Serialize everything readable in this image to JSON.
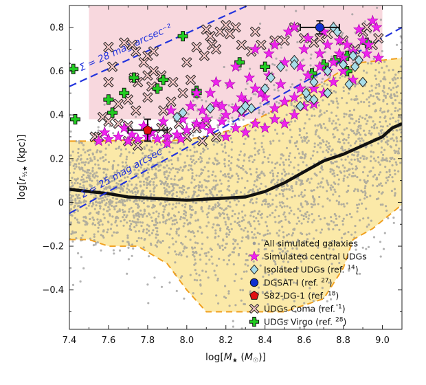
{
  "chart_data": {
    "type": "scatter",
    "xlabel": "log[M★ (M☉)]",
    "ylabel": "log[r½★ (kpc)]",
    "xlim": [
      7.4,
      9.1
    ],
    "ylim": [
      -0.58,
      0.9
    ],
    "xticks": [
      7.4,
      7.6,
      7.8,
      8.0,
      8.2,
      8.4,
      8.6,
      8.8,
      9.0
    ],
    "xtick_labels": [
      "7.4",
      "7.6",
      "7.8",
      "8.0",
      "8.2",
      "8.4",
      "8.6",
      "8.8",
      "9.0"
    ],
    "yticks": [
      -0.4,
      -0.2,
      0.0,
      0.2,
      0.4,
      0.6,
      0.8
    ],
    "ytick_labels": [
      "−0.4",
      "−0.2",
      "0",
      "0.2",
      "0.4",
      "0.6",
      "0.8"
    ],
    "colors": {
      "all_galaxies": "#9a9a9a",
      "scatter_fill": "#fbe9a8",
      "udg_region": "#f8d8de",
      "contour": "#f0a020",
      "median": "#111111",
      "sb_lines": "#2233dd",
      "sim_udg": "#ee22ee",
      "isolated_udg": "#a8dde8",
      "dgsat": "#1030d0",
      "s82": "#e01010",
      "coma_fill": "#f7c8c8",
      "virgo": "#22cc22"
    },
    "udg_region": {
      "x_range": [
        7.5,
        9.0
      ],
      "y_range": [
        0.38,
        0.9
      ]
    },
    "contour_upper": {
      "x": [
        7.4,
        7.55,
        7.7,
        7.9,
        8.1,
        8.3,
        8.5,
        8.7,
        8.82,
        8.9,
        9.1
      ],
      "y": [
        0.28,
        0.28,
        0.285,
        0.28,
        0.3,
        0.35,
        0.45,
        0.55,
        0.62,
        0.64,
        0.66
      ]
    },
    "contour_lower": {
      "x": [
        7.4,
        7.5,
        7.6,
        7.75,
        7.9,
        8.0,
        8.1,
        8.3,
        8.5,
        8.7,
        8.8,
        8.85,
        8.95,
        9.1
      ],
      "y": [
        -0.17,
        -0.17,
        -0.2,
        -0.2,
        -0.28,
        -0.4,
        -0.5,
        -0.5,
        -0.5,
        -0.44,
        -0.3,
        -0.17,
        -0.12,
        -0.01
      ]
    },
    "median_line": {
      "x": [
        7.4,
        7.5,
        7.6,
        7.7,
        7.8,
        7.9,
        8.0,
        8.1,
        8.2,
        8.3,
        8.4,
        8.5,
        8.6,
        8.7,
        8.8,
        8.9,
        9.0,
        9.05,
        9.1
      ],
      "y": [
        0.06,
        0.05,
        0.04,
        0.025,
        0.02,
        0.015,
        0.01,
        0.015,
        0.02,
        0.025,
        0.05,
        0.09,
        0.14,
        0.19,
        0.22,
        0.26,
        0.3,
        0.34,
        0.36
      ]
    },
    "sb_lines": [
      {
        "label": "Σ = 28 mag arcsec⁻²",
        "x": [
          7.4,
          9.1
        ],
        "y": [
          0.53,
          1.22
        ]
      },
      {
        "label": "Σ = 25 mag arcsec⁻²",
        "x": [
          7.4,
          9.1
        ],
        "y": [
          -0.05,
          0.8
        ]
      }
    ],
    "series": [
      {
        "name": "All simulated galaxies",
        "marker": "dot",
        "n_points": 2800
      },
      {
        "name": "Simulated central UDGs",
        "marker": "star",
        "points": [
          [
            8.95,
            0.83
          ],
          [
            8.97,
            0.8
          ],
          [
            8.9,
            0.74
          ],
          [
            8.93,
            0.72
          ],
          [
            8.85,
            0.69
          ],
          [
            8.8,
            0.66
          ],
          [
            8.72,
            0.72
          ],
          [
            8.75,
            0.64
          ],
          [
            8.68,
            0.62
          ],
          [
            8.62,
            0.58
          ],
          [
            8.58,
            0.52
          ],
          [
            8.55,
            0.48
          ],
          [
            8.5,
            0.46
          ],
          [
            8.45,
            0.43
          ],
          [
            8.4,
            0.48
          ],
          [
            8.35,
            0.52
          ],
          [
            8.3,
            0.46
          ],
          [
            8.25,
            0.43
          ],
          [
            8.2,
            0.4
          ],
          [
            8.15,
            0.45
          ],
          [
            8.1,
            0.38
          ],
          [
            8.05,
            0.36
          ],
          [
            8.0,
            0.33
          ],
          [
            7.95,
            0.31
          ],
          [
            7.9,
            0.3
          ],
          [
            7.85,
            0.29
          ],
          [
            7.8,
            0.3
          ],
          [
            7.75,
            0.29
          ],
          [
            7.7,
            0.28
          ],
          [
            7.65,
            0.3
          ],
          [
            7.6,
            0.29
          ],
          [
            7.55,
            0.28
          ],
          [
            7.58,
            0.32
          ],
          [
            7.68,
            0.34
          ],
          [
            7.78,
            0.35
          ],
          [
            7.88,
            0.37
          ],
          [
            7.98,
            0.38
          ],
          [
            8.08,
            0.42
          ],
          [
            8.18,
            0.44
          ],
          [
            8.28,
            0.48
          ],
          [
            8.38,
            0.5
          ],
          [
            8.48,
            0.54
          ],
          [
            8.58,
            0.62
          ],
          [
            8.68,
            0.68
          ],
          [
            8.78,
            0.74
          ],
          [
            8.88,
            0.79
          ],
          [
            8.6,
            0.7
          ],
          [
            8.5,
            0.64
          ],
          [
            8.42,
            0.58
          ],
          [
            8.32,
            0.57
          ],
          [
            8.22,
            0.54
          ],
          [
            8.12,
            0.5
          ],
          [
            8.02,
            0.44
          ],
          [
            7.92,
            0.42
          ],
          [
            8.45,
            0.72
          ],
          [
            8.35,
            0.7
          ],
          [
            8.55,
            0.8
          ],
          [
            8.7,
            0.78
          ],
          [
            8.25,
            0.62
          ],
          [
            8.15,
            0.55
          ],
          [
            8.05,
            0.5
          ],
          [
            8.8,
            0.6
          ],
          [
            8.85,
            0.56
          ],
          [
            8.65,
            0.52
          ],
          [
            8.75,
            0.55
          ],
          [
            8.92,
            0.68
          ],
          [
            8.98,
            0.66
          ],
          [
            8.45,
            0.38
          ],
          [
            8.55,
            0.4
          ],
          [
            8.35,
            0.36
          ],
          [
            8.25,
            0.34
          ],
          [
            8.12,
            0.33
          ],
          [
            7.97,
            0.29
          ],
          [
            7.9,
            0.27
          ],
          [
            8.65,
            0.45
          ],
          [
            8.5,
            0.36
          ],
          [
            8.4,
            0.34
          ],
          [
            8.3,
            0.32
          ],
          [
            8.2,
            0.3
          ],
          [
            8.6,
            0.44
          ],
          [
            8.7,
            0.5
          ],
          [
            8.52,
            0.78
          ],
          [
            8.42,
            0.68
          ],
          [
            8.62,
            0.75
          ],
          [
            8.82,
            0.72
          ],
          [
            8.28,
            0.41
          ],
          [
            8.18,
            0.37
          ],
          [
            8.08,
            0.35
          ],
          [
            7.82,
            0.32
          ],
          [
            7.72,
            0.31
          ],
          [
            8.72,
            0.6
          ],
          [
            8.78,
            0.68
          ]
        ]
      },
      {
        "name": "Isolated UDGs",
        "ref": "14",
        "marker": "diamond",
        "points": [
          [
            8.75,
            0.8
          ],
          [
            8.77,
            0.78
          ],
          [
            8.85,
            0.67
          ],
          [
            8.88,
            0.65
          ],
          [
            8.8,
            0.63
          ],
          [
            8.55,
            0.65
          ],
          [
            8.48,
            0.62
          ],
          [
            8.55,
            0.63
          ],
          [
            8.43,
            0.57
          ],
          [
            8.4,
            0.52
          ],
          [
            8.72,
            0.6
          ],
          [
            8.65,
            0.55
          ],
          [
            8.33,
            0.43
          ],
          [
            8.28,
            0.42
          ],
          [
            8.3,
            0.44
          ],
          [
            8.62,
            0.48
          ],
          [
            8.65,
            0.47
          ],
          [
            8.72,
            0.5
          ],
          [
            8.83,
            0.54
          ],
          [
            8.9,
            0.55
          ],
          [
            7.98,
            0.41
          ],
          [
            8.12,
            0.43
          ],
          [
            7.95,
            0.39
          ],
          [
            8.58,
            0.44
          ],
          [
            8.61,
            0.5
          ],
          [
            8.86,
            0.62
          ]
        ]
      },
      {
        "name": "DGSAT I",
        "ref": "27",
        "marker": "circle",
        "points": [
          [
            8.68,
            0.8
          ]
        ],
        "xerr": 0.1,
        "yerr": 0.03
      },
      {
        "name": "S82-DG-1",
        "ref": "18",
        "marker": "pentagon",
        "points": [
          [
            7.8,
            0.33
          ]
        ],
        "xerr": 0.1,
        "yerr": 0.05
      },
      {
        "name": "UDGs Coma",
        "ref": "1",
        "marker": "x-box",
        "points": [
          [
            7.38,
            0.62
          ],
          [
            7.62,
            0.62
          ],
          [
            7.6,
            0.55
          ],
          [
            7.75,
            0.55
          ],
          [
            7.8,
            0.58
          ],
          [
            7.83,
            0.6
          ],
          [
            7.82,
            0.53
          ],
          [
            7.78,
            0.64
          ],
          [
            7.73,
            0.57
          ],
          [
            7.87,
            0.58
          ],
          [
            7.65,
            0.45
          ],
          [
            7.7,
            0.47
          ],
          [
            7.74,
            0.42
          ],
          [
            7.88,
            0.42
          ],
          [
            7.8,
            0.48
          ],
          [
            7.57,
            0.39
          ],
          [
            7.6,
            0.37
          ],
          [
            7.65,
            0.36
          ],
          [
            7.7,
            0.35
          ],
          [
            7.53,
            0.3
          ],
          [
            7.55,
            0.3
          ],
          [
            7.7,
            0.28
          ],
          [
            7.75,
            0.26
          ],
          [
            7.87,
            0.34
          ],
          [
            7.9,
            0.32
          ],
          [
            7.96,
            0.36
          ],
          [
            8.0,
            0.3
          ],
          [
            8.05,
            0.34
          ],
          [
            8.1,
            0.36
          ],
          [
            8.08,
            0.28
          ],
          [
            8.15,
            0.3
          ],
          [
            8.0,
            0.64
          ],
          [
            8.05,
            0.71
          ],
          [
            8.09,
            0.67
          ],
          [
            8.1,
            0.79
          ],
          [
            8.12,
            0.76
          ],
          [
            8.13,
            0.72
          ],
          [
            8.15,
            0.7
          ],
          [
            8.17,
            0.78
          ],
          [
            8.2,
            0.81
          ],
          [
            8.25,
            0.8
          ],
          [
            8.22,
            0.77
          ],
          [
            8.28,
            0.72
          ],
          [
            8.33,
            0.69
          ],
          [
            8.35,
            0.78
          ],
          [
            8.38,
            0.72
          ],
          [
            8.45,
            0.74
          ],
          [
            8.5,
            0.74
          ],
          [
            8.55,
            0.8
          ],
          [
            8.6,
            0.75
          ],
          [
            8.65,
            0.73
          ],
          [
            8.68,
            0.75
          ],
          [
            8.72,
            0.77
          ],
          [
            8.8,
            0.74
          ],
          [
            8.86,
            0.7
          ],
          [
            8.95,
            0.72
          ],
          [
            8.98,
            0.75
          ],
          [
            7.92,
            0.46
          ],
          [
            7.98,
            0.5
          ],
          [
            7.93,
            0.55
          ],
          [
            8.02,
            0.56
          ],
          [
            7.6,
            0.71
          ],
          [
            7.68,
            0.73
          ],
          [
            7.72,
            0.72
          ],
          [
            7.74,
            0.69
          ],
          [
            7.8,
            0.67
          ],
          [
            7.83,
            0.69
          ],
          [
            8.9,
            0.78
          ],
          [
            8.92,
            0.8
          ]
        ]
      },
      {
        "name": "UDGs Virgo",
        "ref": "28",
        "marker": "plus",
        "points": [
          [
            7.42,
            0.61
          ],
          [
            7.43,
            0.38
          ],
          [
            7.68,
            0.5
          ],
          [
            7.6,
            0.47
          ],
          [
            7.62,
            0.41
          ],
          [
            7.73,
            0.57
          ],
          [
            7.85,
            0.52
          ],
          [
            7.88,
            0.56
          ],
          [
            7.98,
            0.76
          ],
          [
            8.05,
            0.51
          ],
          [
            8.05,
            0.5
          ],
          [
            8.27,
            0.64
          ],
          [
            8.4,
            0.62
          ],
          [
            8.64,
            0.59
          ],
          [
            8.82,
            0.67
          ],
          [
            8.76,
            0.65
          ],
          [
            8.7,
            0.63
          ],
          [
            8.92,
            0.73
          ],
          [
            8.82,
            0.6
          ]
        ]
      }
    ],
    "legend": {
      "placement": "bottom-right",
      "items": [
        {
          "marker": "dot",
          "label": "All simulated galaxies"
        },
        {
          "marker": "star",
          "label": "Simulated central UDGs"
        },
        {
          "marker": "diamond",
          "label": "Isolated UDGs (ref. ",
          "ref": "14",
          "close": ")"
        },
        {
          "marker": "circle",
          "label": "DGSAT I (ref. ",
          "ref": "27",
          "close": ")"
        },
        {
          "marker": "pentagon",
          "label": "S82-DG-1 (ref. ",
          "ref": "18",
          "close": ")"
        },
        {
          "marker": "x-box",
          "label": "UDGs Coma (ref. ",
          "ref": "1",
          "close": ")"
        },
        {
          "marker": "plus",
          "label": "UDGs Virgo (ref. ",
          "ref": "28",
          "close": ")"
        }
      ]
    }
  }
}
